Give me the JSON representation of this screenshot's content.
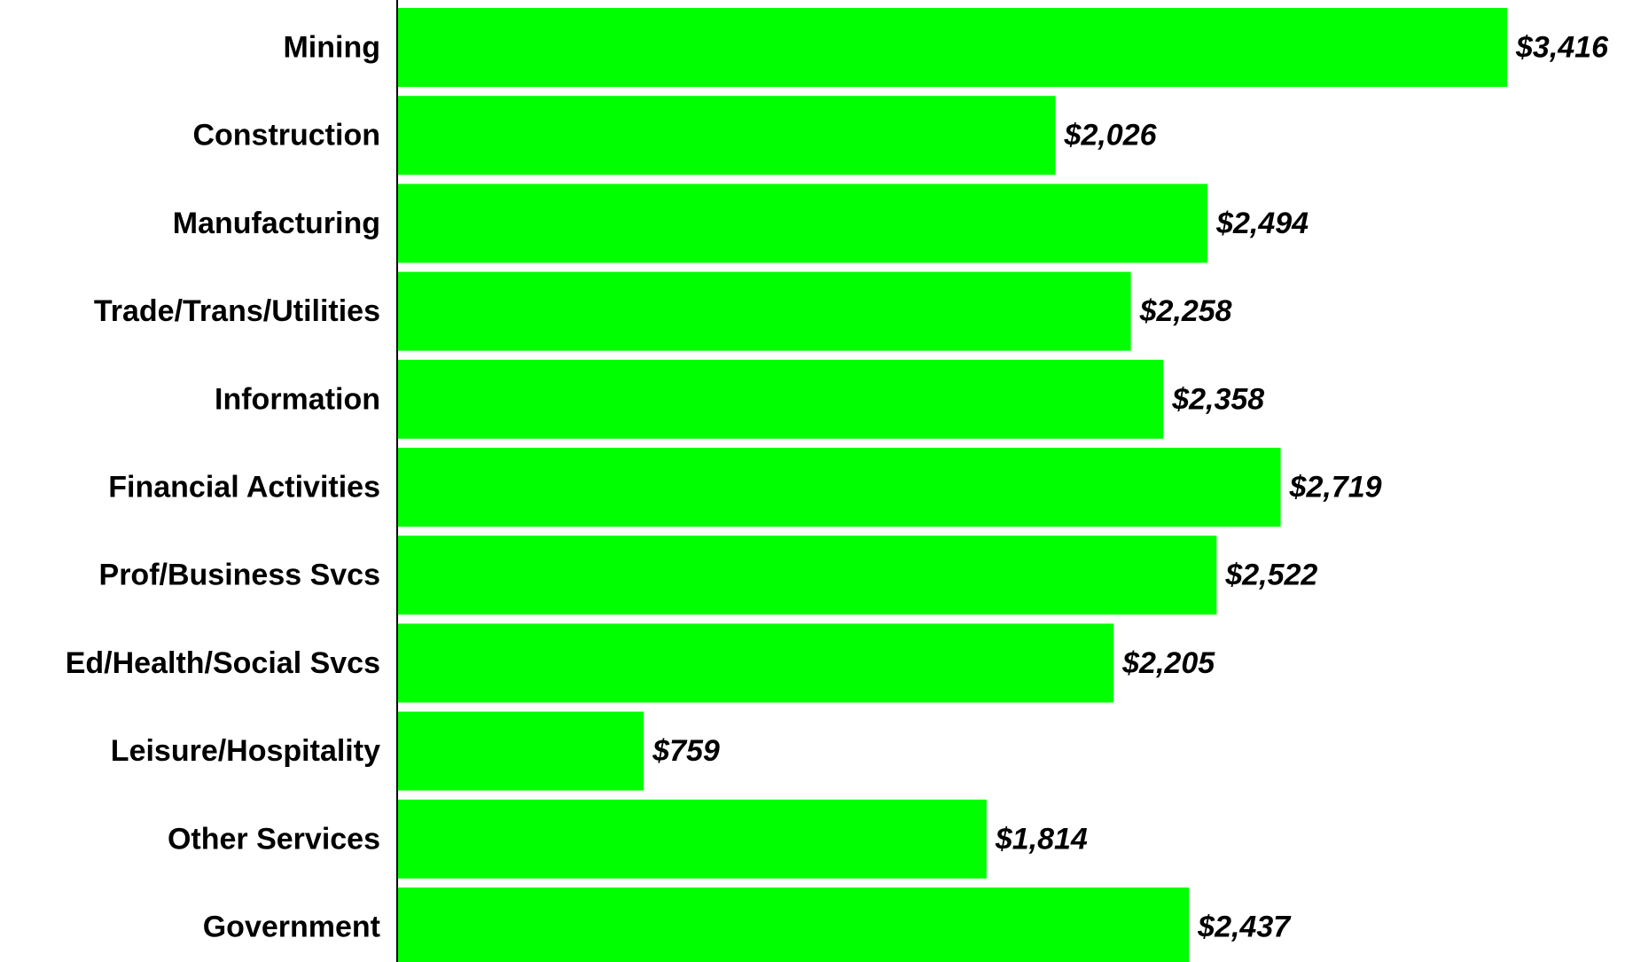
{
  "chart_data": {
    "type": "bar",
    "orientation": "horizontal",
    "categories": [
      "Mining",
      "Construction",
      "Manufacturing",
      "Trade/Trans/Utilities",
      "Information",
      "Financial Activities",
      "Prof/Business Svcs",
      "Ed/Health/Social Svcs",
      "Leisure/Hospitality",
      "Other Services",
      "Government"
    ],
    "values": [
      3416,
      2026,
      2494,
      2258,
      2358,
      2719,
      2522,
      2205,
      759,
      1814,
      2437
    ],
    "value_labels": [
      "$3,416",
      "$2,026",
      "$2,494",
      "$2,258",
      "$2,358",
      "$2,719",
      "$2,522",
      "$2,205",
      "$759",
      "$1,814",
      "$2,437"
    ],
    "color": "#00ff00"
  }
}
